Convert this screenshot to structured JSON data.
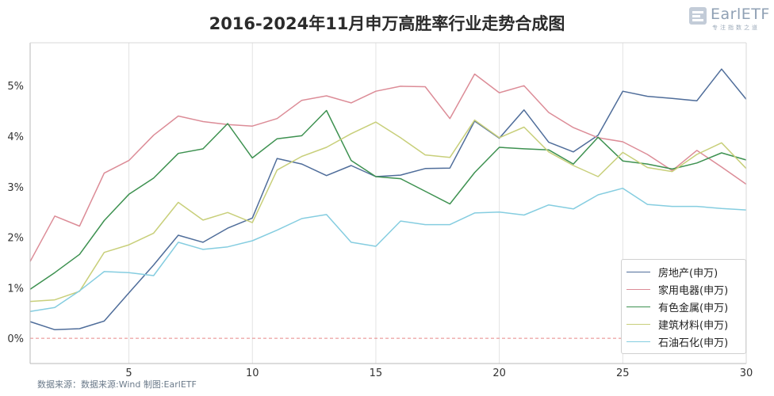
{
  "title": "2016-2024年11月申万高胜率行业走势合成图",
  "logo": {
    "text": "EarlETF",
    "subtitle": "专注指数之道"
  },
  "source": "数据来源：数据来源:Wind 制图:EarlETF",
  "colors": {
    "房地产": "#4f6d9a",
    "家用电器": "#dc8c97",
    "有色金属": "#3d9150",
    "建筑材料": "#c8cf7a",
    "石油石化": "#85cde0",
    "zero_line": "#e88888",
    "grid": "#e3e3e3"
  },
  "chart_data": {
    "type": "line",
    "title": "2016-2024年11月申万高胜率行业走势合成图",
    "xlabel": "",
    "ylabel": "",
    "xlim": [
      1,
      30
    ],
    "ylim": [
      -0.5,
      5.85
    ],
    "x_ticks": [
      5,
      10,
      15,
      20,
      25,
      30
    ],
    "y_ticks": [
      0,
      1,
      2,
      3,
      4,
      5
    ],
    "y_tick_labels": [
      "0%",
      "1%",
      "2%",
      "3%",
      "4%",
      "5%"
    ],
    "grid": "vertical",
    "legend_position": "bottom-right",
    "reference_line": {
      "y": 0,
      "style": "dashed"
    },
    "x": [
      1,
      2,
      3,
      4,
      5,
      6,
      7,
      8,
      9,
      10,
      11,
      12,
      13,
      14,
      15,
      16,
      17,
      18,
      19,
      20,
      21,
      22,
      23,
      24,
      25,
      26,
      27,
      28,
      29,
      30
    ],
    "series": [
      {
        "name": "房地产(申万)",
        "key": "房地产",
        "values": [
          0.33,
          0.17,
          0.19,
          0.34,
          0.9,
          1.45,
          2.04,
          1.9,
          2.18,
          2.38,
          3.56,
          3.45,
          3.22,
          3.42,
          3.2,
          3.23,
          3.36,
          3.37,
          4.3,
          3.96,
          4.52,
          3.88,
          3.69,
          4.02,
          4.89,
          4.79,
          4.75,
          4.7,
          5.33,
          4.73
        ]
      },
      {
        "name": "家用电器(申万)",
        "key": "家用电器",
        "values": [
          1.52,
          2.42,
          2.22,
          3.27,
          3.52,
          4.02,
          4.4,
          4.29,
          4.23,
          4.2,
          4.35,
          4.71,
          4.8,
          4.66,
          4.89,
          4.99,
          4.98,
          4.35,
          5.23,
          4.86,
          5.0,
          4.47,
          4.17,
          3.97,
          3.89,
          3.64,
          3.32,
          3.72,
          3.39,
          3.05
        ]
      },
      {
        "name": "有色金属(申万)",
        "key": "有色金属",
        "values": [
          0.97,
          1.3,
          1.66,
          2.33,
          2.85,
          3.17,
          3.66,
          3.75,
          4.25,
          3.57,
          3.95,
          4.01,
          4.51,
          3.52,
          3.2,
          3.16,
          2.91,
          2.66,
          3.28,
          3.78,
          3.75,
          3.73,
          3.45,
          3.98,
          3.51,
          3.45,
          3.35,
          3.47,
          3.67,
          3.53
        ]
      },
      {
        "name": "建筑材料(申万)",
        "key": "建筑材料",
        "values": [
          0.73,
          0.76,
          0.93,
          1.7,
          1.85,
          2.08,
          2.69,
          2.34,
          2.49,
          2.29,
          3.33,
          3.6,
          3.78,
          4.05,
          4.28,
          3.97,
          3.63,
          3.58,
          4.32,
          3.97,
          4.18,
          3.69,
          3.42,
          3.2,
          3.68,
          3.38,
          3.3,
          3.64,
          3.87,
          3.36
        ]
      },
      {
        "name": "石油石化(申万)",
        "key": "石油石化",
        "values": [
          0.53,
          0.61,
          0.94,
          1.32,
          1.3,
          1.24,
          1.9,
          1.76,
          1.81,
          1.93,
          2.14,
          2.37,
          2.45,
          1.9,
          1.82,
          2.32,
          2.25,
          2.25,
          2.48,
          2.5,
          2.44,
          2.64,
          2.56,
          2.84,
          2.97,
          2.65,
          2.61,
          2.61,
          2.57,
          2.54
        ]
      }
    ]
  }
}
